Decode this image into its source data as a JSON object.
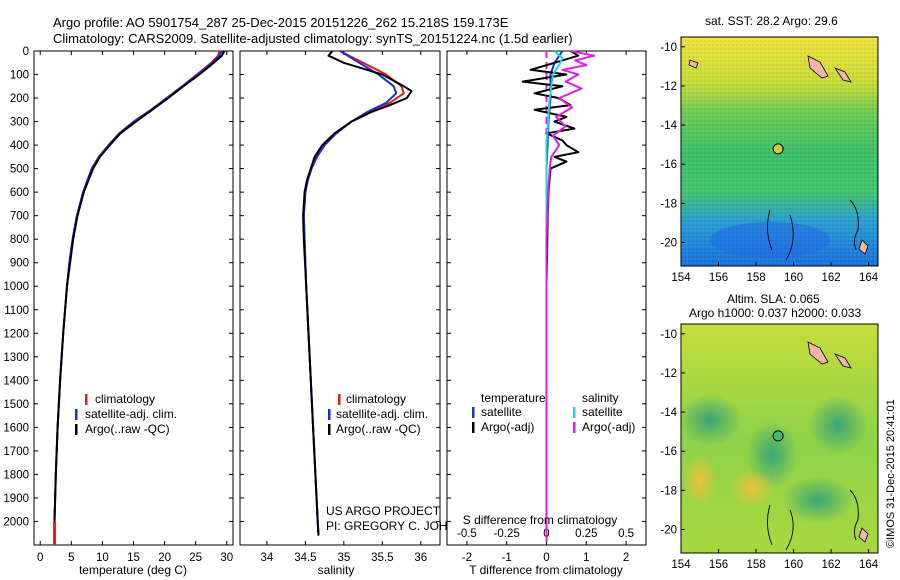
{
  "header": {
    "title_line1": "Argo profile: AO 5901754_287 25-Dec-2015 20151226_262 15.218S 159.173E",
    "title_line2": "Climatology: CARS2009. Satellite-adjusted climatology: synTS_20151224.nc (1.5d earlier)"
  },
  "credits": {
    "project": "US ARGO PROJECT",
    "pi": "PI: GREGORY C. JOHNSON",
    "imos": "©IMOS 31-Dec-2015 20:41:01"
  },
  "maps": {
    "sst_title": "sat. SST: 28.2  Argo: 29.6",
    "sla_title1": "Altim. SLA: 0.065",
    "sla_title2": "Argo h1000: 0.037 h2000: 0.033",
    "lon_ticks": [
      "154",
      "156",
      "158",
      "160",
      "162",
      "164"
    ],
    "lat_ticks": [
      "-10",
      "-12",
      "-14",
      "-16",
      "-18",
      "-20"
    ],
    "lon_range": [
      154,
      164.5
    ],
    "lat_range": [
      -21.2,
      -9.5
    ],
    "float_position": {
      "lon": 159.173,
      "lat": -15.218
    },
    "colors": {
      "sst_warm": "#f2e23a",
      "sst_mid": "#3fbf6a",
      "sst_cool": "#1a7fe0",
      "land": "#f5b5a8",
      "float_marker": "#c8d232"
    }
  },
  "chart_data": [
    {
      "type": "line",
      "panel": "temperature",
      "xlabel": "temperature (deg C)",
      "ylabel": "",
      "xlim": [
        -1,
        31
      ],
      "ylim": [
        2100,
        0
      ],
      "xticks": [
        0,
        5,
        10,
        15,
        20,
        25,
        30
      ],
      "yticks": [
        0,
        100,
        200,
        300,
        400,
        500,
        600,
        700,
        800,
        900,
        1000,
        1100,
        1200,
        1300,
        1400,
        1500,
        1600,
        1700,
        1800,
        1900,
        2000
      ],
      "legend": [
        "climatology",
        "satellite-adj. clim.",
        "Argo(..raw -QC)"
      ],
      "legend_position": "lower-center",
      "series": [
        {
          "name": "climatology",
          "color": "#e02020",
          "depth": [
            0,
            20,
            50,
            100,
            150,
            200,
            250,
            300,
            350,
            400,
            450,
            500,
            600,
            700,
            800,
            900,
            1000,
            1200,
            1400,
            1600,
            1800,
            2000,
            2060
          ],
          "values": [
            28.8,
            28.6,
            27.5,
            25.2,
            22.8,
            20.3,
            17.8,
            15.0,
            12.7,
            11.0,
            9.4,
            8.3,
            6.9,
            5.9,
            5.2,
            4.7,
            4.3,
            3.7,
            3.2,
            2.8,
            2.5,
            2.3,
            2.3
          ]
        },
        {
          "name": "satellite-adj. clim.",
          "color": "#1a2fd6",
          "depth": [
            0,
            20,
            50,
            100,
            150,
            200,
            250,
            300,
            350,
            400,
            450,
            500,
            600,
            700,
            800,
            900,
            1000,
            1200,
            1400,
            1600,
            1800,
            2000,
            2060
          ],
          "values": [
            29.2,
            28.8,
            27.7,
            25.3,
            22.9,
            20.4,
            17.9,
            15.1,
            12.8,
            11.0,
            9.5,
            8.3,
            6.9,
            5.9,
            5.2,
            4.7,
            4.3,
            3.7,
            3.2,
            2.8,
            2.5,
            2.3,
            2.3
          ]
        },
        {
          "name": "Argo(..raw -QC)",
          "color": "#000000",
          "depth": [
            0,
            20,
            50,
            100,
            150,
            200,
            250,
            300,
            350,
            400,
            450,
            500,
            600,
            700,
            800,
            900,
            1000,
            1200,
            1400,
            1600,
            1800,
            2000,
            2060
          ],
          "values": [
            29.6,
            29.2,
            27.9,
            25.6,
            23.0,
            20.6,
            18.0,
            15.4,
            12.9,
            11.2,
            9.6,
            8.5,
            7.0,
            6.0,
            5.3,
            4.8,
            4.3,
            3.7,
            3.2,
            2.8,
            2.5,
            2.3,
            2.3
          ]
        }
      ]
    },
    {
      "type": "line",
      "panel": "salinity",
      "xlabel": "salinity",
      "ylabel": "",
      "xlim": [
        33.65,
        36.25
      ],
      "ylim": [
        2100,
        0
      ],
      "xticks": [
        34,
        34.5,
        35,
        35.5,
        36
      ],
      "xtick_labels": [
        "34",
        "34.5",
        "35",
        "35.5",
        "36"
      ],
      "legend": [
        "climatology",
        "satellite-adj. clim.",
        "Argo(..raw -QC)"
      ],
      "legend_position": "lower-center",
      "series": [
        {
          "name": "climatology",
          "color": "#e02020",
          "depth": [
            0,
            50,
            100,
            150,
            180,
            220,
            260,
            300,
            350,
            400,
            450,
            500,
            550,
            600,
            700,
            800,
            1000,
            1200,
            1400,
            1600,
            1800,
            2000,
            2060
          ],
          "values": [
            34.95,
            35.25,
            35.55,
            35.75,
            35.78,
            35.6,
            35.35,
            35.1,
            34.9,
            34.75,
            34.65,
            34.58,
            34.53,
            34.5,
            34.48,
            34.49,
            34.51,
            34.54,
            34.57,
            34.6,
            34.63,
            34.66,
            34.67
          ]
        },
        {
          "name": "satellite-adj. clim.",
          "color": "#1a2fd6",
          "depth": [
            0,
            50,
            100,
            150,
            180,
            220,
            260,
            300,
            350,
            400,
            450,
            500,
            550,
            600,
            700,
            800,
            1000,
            1200,
            1400,
            1600,
            1800,
            2000,
            2060
          ],
          "values": [
            34.95,
            35.2,
            35.45,
            35.65,
            35.68,
            35.55,
            35.3,
            35.1,
            34.9,
            34.75,
            34.65,
            34.58,
            34.53,
            34.5,
            34.48,
            34.49,
            34.51,
            34.54,
            34.57,
            34.6,
            34.63,
            34.66,
            34.67
          ]
        },
        {
          "name": "Argo(..raw -QC)",
          "color": "#000000",
          "depth": [
            0,
            20,
            50,
            80,
            100,
            150,
            170,
            200,
            230,
            260,
            300,
            350,
            400,
            450,
            500,
            550,
            600,
            700,
            800,
            1000,
            1200,
            1400,
            1600,
            1800,
            2000,
            2060
          ],
          "values": [
            34.85,
            34.8,
            35.0,
            35.3,
            35.5,
            35.78,
            35.88,
            35.82,
            35.6,
            35.35,
            35.1,
            34.88,
            34.72,
            34.62,
            34.57,
            34.52,
            34.49,
            34.47,
            34.48,
            34.51,
            34.54,
            34.57,
            34.6,
            34.63,
            34.66,
            34.67
          ]
        }
      ]
    },
    {
      "type": "line",
      "panel": "difference",
      "xlabel": "T difference from climatology",
      "xlabel_top": "S difference from climatology",
      "xlim": [
        -2.5,
        2.5
      ],
      "ylim": [
        2100,
        0
      ],
      "xticks": [
        -2,
        -1,
        0,
        1,
        2
      ],
      "xtick_labels": [
        "-2",
        "-1",
        "0",
        "1",
        "2"
      ],
      "s_xtick_labels": [
        "-0.5",
        "-0.25",
        "0",
        "0.25",
        "0.5"
      ],
      "legend": [
        "temperature",
        "satellite",
        "Argo(-adj)",
        "salinity",
        "satellite",
        "Argo(-adj)"
      ],
      "legend_position": "lower-center",
      "series": [
        {
          "name": "satellite",
          "group": "temperature",
          "color": "#1a2fd6",
          "depth": [
            0,
            50,
            100,
            150,
            200,
            300,
            500,
            800,
            1000,
            2060
          ],
          "values": [
            0.4,
            0.2,
            0.1,
            0.1,
            0.1,
            0.05,
            0.0,
            0.0,
            0.0,
            0.0
          ]
        },
        {
          "name": "Argo(-adj)",
          "group": "temperature",
          "color": "#000000",
          "depth": [
            0,
            20,
            50,
            80,
            100,
            130,
            150,
            180,
            200,
            230,
            250,
            280,
            300,
            330,
            350,
            380,
            400,
            430,
            450,
            470,
            500,
            600,
            700,
            800,
            1000,
            1500,
            2060
          ],
          "values": [
            0.6,
            0.8,
            0.2,
            -0.4,
            0.5,
            -0.6,
            0.4,
            -0.3,
            0.3,
            0.6,
            -0.3,
            0.5,
            0.2,
            0.7,
            0.0,
            0.4,
            0.5,
            0.8,
            0.2,
            0.5,
            0.1,
            0.05,
            0.03,
            0.02,
            0.0,
            0.0,
            0.0
          ]
        },
        {
          "name": "satellite",
          "group": "salinity",
          "color": "#22d0e0",
          "depth": [
            0,
            30,
            60,
            100,
            150,
            200,
            300,
            400,
            600,
            1000,
            2060
          ],
          "values": [
            0.05,
            0.1,
            0.08,
            0.04,
            0.03,
            0.02,
            0.01,
            0.0,
            0.0,
            0.0,
            0.0
          ]
        },
        {
          "name": "Argo(-adj)",
          "group": "salinity",
          "color": "#e020e0",
          "depth": [
            0,
            20,
            40,
            60,
            80,
            100,
            130,
            160,
            200,
            240,
            280,
            320,
            360,
            400,
            450,
            500,
            600,
            800,
            1000,
            1500,
            2060
          ],
          "values": [
            0.15,
            0.3,
            0.18,
            0.25,
            0.1,
            0.2,
            0.12,
            0.22,
            0.08,
            0.16,
            0.06,
            0.12,
            0.04,
            0.08,
            0.03,
            0.02,
            0.01,
            0.0,
            0.0,
            0.0,
            0.0
          ]
        }
      ]
    }
  ]
}
